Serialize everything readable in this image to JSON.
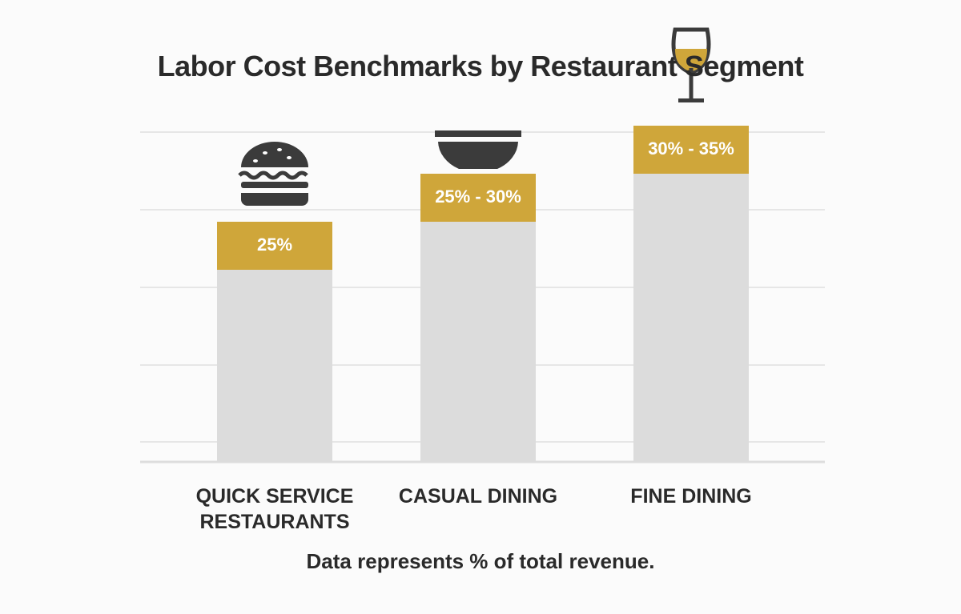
{
  "chart_data": {
    "type": "bar",
    "title": "Labor Cost Benchmarks by Restaurant Segment",
    "categories": [
      "QUICK SERVICE RESTAURANTS",
      "CASUAL DINING",
      "FINE DINING"
    ],
    "low": [
      25,
      25,
      30
    ],
    "high": [
      25,
      30,
      35
    ],
    "value_labels": [
      "25%",
      "25% - 30%",
      "30% - 35%"
    ],
    "colors": {
      "base": "#dcdcdc",
      "range": "#cfa63a"
    },
    "ylim": [
      0,
      40
    ],
    "note": "Data represents % of total revenue."
  }
}
